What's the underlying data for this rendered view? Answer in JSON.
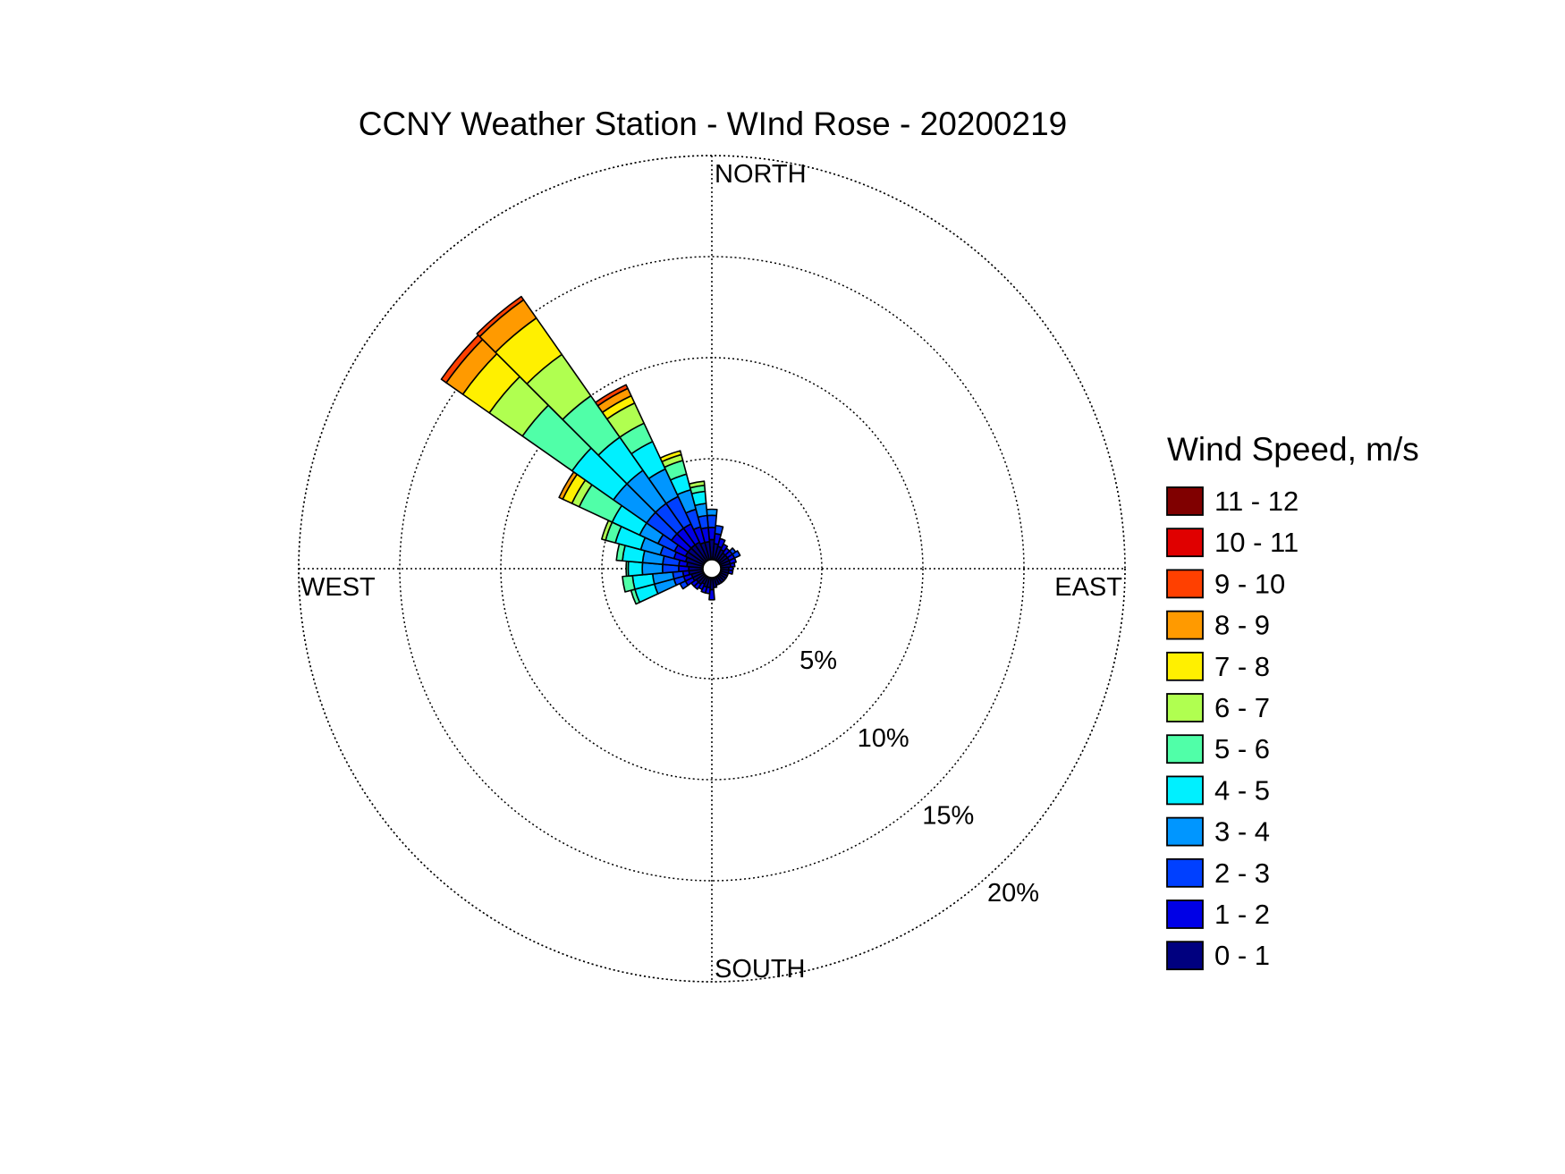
{
  "chart_data": {
    "type": "windrose",
    "title": "CCNY Weather Station - WInd Rose - 20200219",
    "direction_labels": {
      "north": "NORTH",
      "east": "EAST",
      "south": "SOUTH",
      "west": "WEST"
    },
    "radial_ticks": [
      {
        "value": 5,
        "label": "5%"
      },
      {
        "value": 10,
        "label": "10%"
      },
      {
        "value": 15,
        "label": "15%"
      },
      {
        "value": 20,
        "label": "20%"
      }
    ],
    "radial_max": 20,
    "radial_unit": "percent frequency",
    "legend": {
      "title": "Wind Speed, m/s",
      "position": "right",
      "bins": [
        {
          "label": "0 - 1",
          "color": "#00007F"
        },
        {
          "label": "1 - 2",
          "color": "#0000E6"
        },
        {
          "label": "2 - 3",
          "color": "#0040FF"
        },
        {
          "label": "3 - 4",
          "color": "#0096FF"
        },
        {
          "label": "4 - 5",
          "color": "#00F0FF"
        },
        {
          "label": "5 - 6",
          "color": "#50FFA8"
        },
        {
          "label": "6 - 7",
          "color": "#B0FF50"
        },
        {
          "label": "7 - 8",
          "color": "#FFF000"
        },
        {
          "label": "8 - 9",
          "color": "#FF9A00"
        },
        {
          "label": "9 - 10",
          "color": "#FF4000"
        },
        {
          "label": "10 - 11",
          "color": "#E00000"
        },
        {
          "label": "11 - 12",
          "color": "#800000"
        }
      ]
    },
    "sector_width_deg": 10,
    "sectors": [
      {
        "direction_deg": 0,
        "cumulative": [
          1.0,
          1.6,
          2.2,
          2.5
        ]
      },
      {
        "direction_deg": 10,
        "cumulative": [
          0.8,
          1.3,
          1.7
        ]
      },
      {
        "direction_deg": 20,
        "cumulative": [
          0.7,
          1.1
        ]
      },
      {
        "direction_deg": 30,
        "cumulative": [
          0.6,
          0.9
        ]
      },
      {
        "direction_deg": 40,
        "cumulative": [
          0.5,
          0.8
        ]
      },
      {
        "direction_deg": 50,
        "cumulative": [
          0.5,
          0.8,
          1.0
        ]
      },
      {
        "direction_deg": 60,
        "cumulative": [
          0.5,
          0.8,
          1.1
        ]
      },
      {
        "direction_deg": 70,
        "cumulative": [
          0.5,
          0.8
        ]
      },
      {
        "direction_deg": 80,
        "cumulative": [
          0.5,
          0.7
        ]
      },
      {
        "direction_deg": 90,
        "cumulative": [
          0.4,
          0.6
        ]
      },
      {
        "direction_deg": 100,
        "cumulative": [
          0.4,
          0.6
        ]
      },
      {
        "direction_deg": 110,
        "cumulative": [
          0.4
        ]
      },
      {
        "direction_deg": 120,
        "cumulative": [
          0.4
        ]
      },
      {
        "direction_deg": 130,
        "cumulative": [
          0.4
        ]
      },
      {
        "direction_deg": 140,
        "cumulative": [
          0.4
        ]
      },
      {
        "direction_deg": 150,
        "cumulative": [
          0.4
        ]
      },
      {
        "direction_deg": 160,
        "cumulative": [
          0.4
        ]
      },
      {
        "direction_deg": 170,
        "cumulative": [
          0.5
        ]
      },
      {
        "direction_deg": 180,
        "cumulative": [
          0.6,
          1.1
        ]
      },
      {
        "direction_deg": 190,
        "cumulative": [
          0.5,
          0.8
        ]
      },
      {
        "direction_deg": 200,
        "cumulative": [
          0.5,
          0.8
        ]
      },
      {
        "direction_deg": 210,
        "cumulative": [
          0.4,
          0.7
        ]
      },
      {
        "direction_deg": 220,
        "cumulative": [
          0.5,
          0.8
        ]
      },
      {
        "direction_deg": 230,
        "cumulative": [
          0.5,
          0.8
        ]
      },
      {
        "direction_deg": 240,
        "cumulative": [
          0.6,
          1.0,
          1.3
        ]
      },
      {
        "direction_deg": 250,
        "cumulative": [
          0.6,
          1.0,
          1.5,
          2.5,
          3.5,
          3.7
        ]
      },
      {
        "direction_deg": 260,
        "cumulative": [
          0.7,
          1.0,
          1.5,
          2.5,
          3.5,
          4.0
        ]
      },
      {
        "direction_deg": 270,
        "cumulative": [
          0.7,
          1.2,
          2.0,
          3.0,
          3.7,
          3.8
        ]
      },
      {
        "direction_deg": 280,
        "cumulative": [
          0.8,
          1.2,
          2.0,
          3.0,
          4.0,
          4.3
        ]
      },
      {
        "direction_deg": 290,
        "cumulative": [
          0.9,
          1.5,
          2.2,
          3.2,
          4.5,
          5.0,
          5.2
        ]
      },
      {
        "direction_deg": 300,
        "cumulative": [
          1.0,
          1.6,
          2.5,
          3.5,
          5.0,
          6.8,
          7.2,
          7.7,
          7.9
        ]
      },
      {
        "direction_deg": 310,
        "cumulative": [
          1.0,
          2.0,
          3.5,
          5.5,
          8.0,
          11.0,
          13.0,
          14.6,
          15.6,
          15.9
        ]
      },
      {
        "direction_deg": 320,
        "cumulative": [
          1.0,
          2.0,
          3.5,
          5.5,
          7.5,
          10.0,
          12.5,
          14.7,
          15.8,
          16.0
        ]
      },
      {
        "direction_deg": 330,
        "cumulative": [
          1.0,
          2.0,
          3.5,
          5.0,
          6.5,
          7.5,
          8.6,
          9.0,
          9.4,
          9.6
        ]
      },
      {
        "direction_deg": 340,
        "cumulative": [
          0.9,
          1.7,
          2.6,
          3.6,
          4.4,
          5.1,
          5.4,
          5.6
        ]
      },
      {
        "direction_deg": 350,
        "cumulative": [
          0.9,
          1.6,
          2.2,
          2.8,
          3.4,
          3.7,
          3.9
        ]
      }
    ]
  }
}
